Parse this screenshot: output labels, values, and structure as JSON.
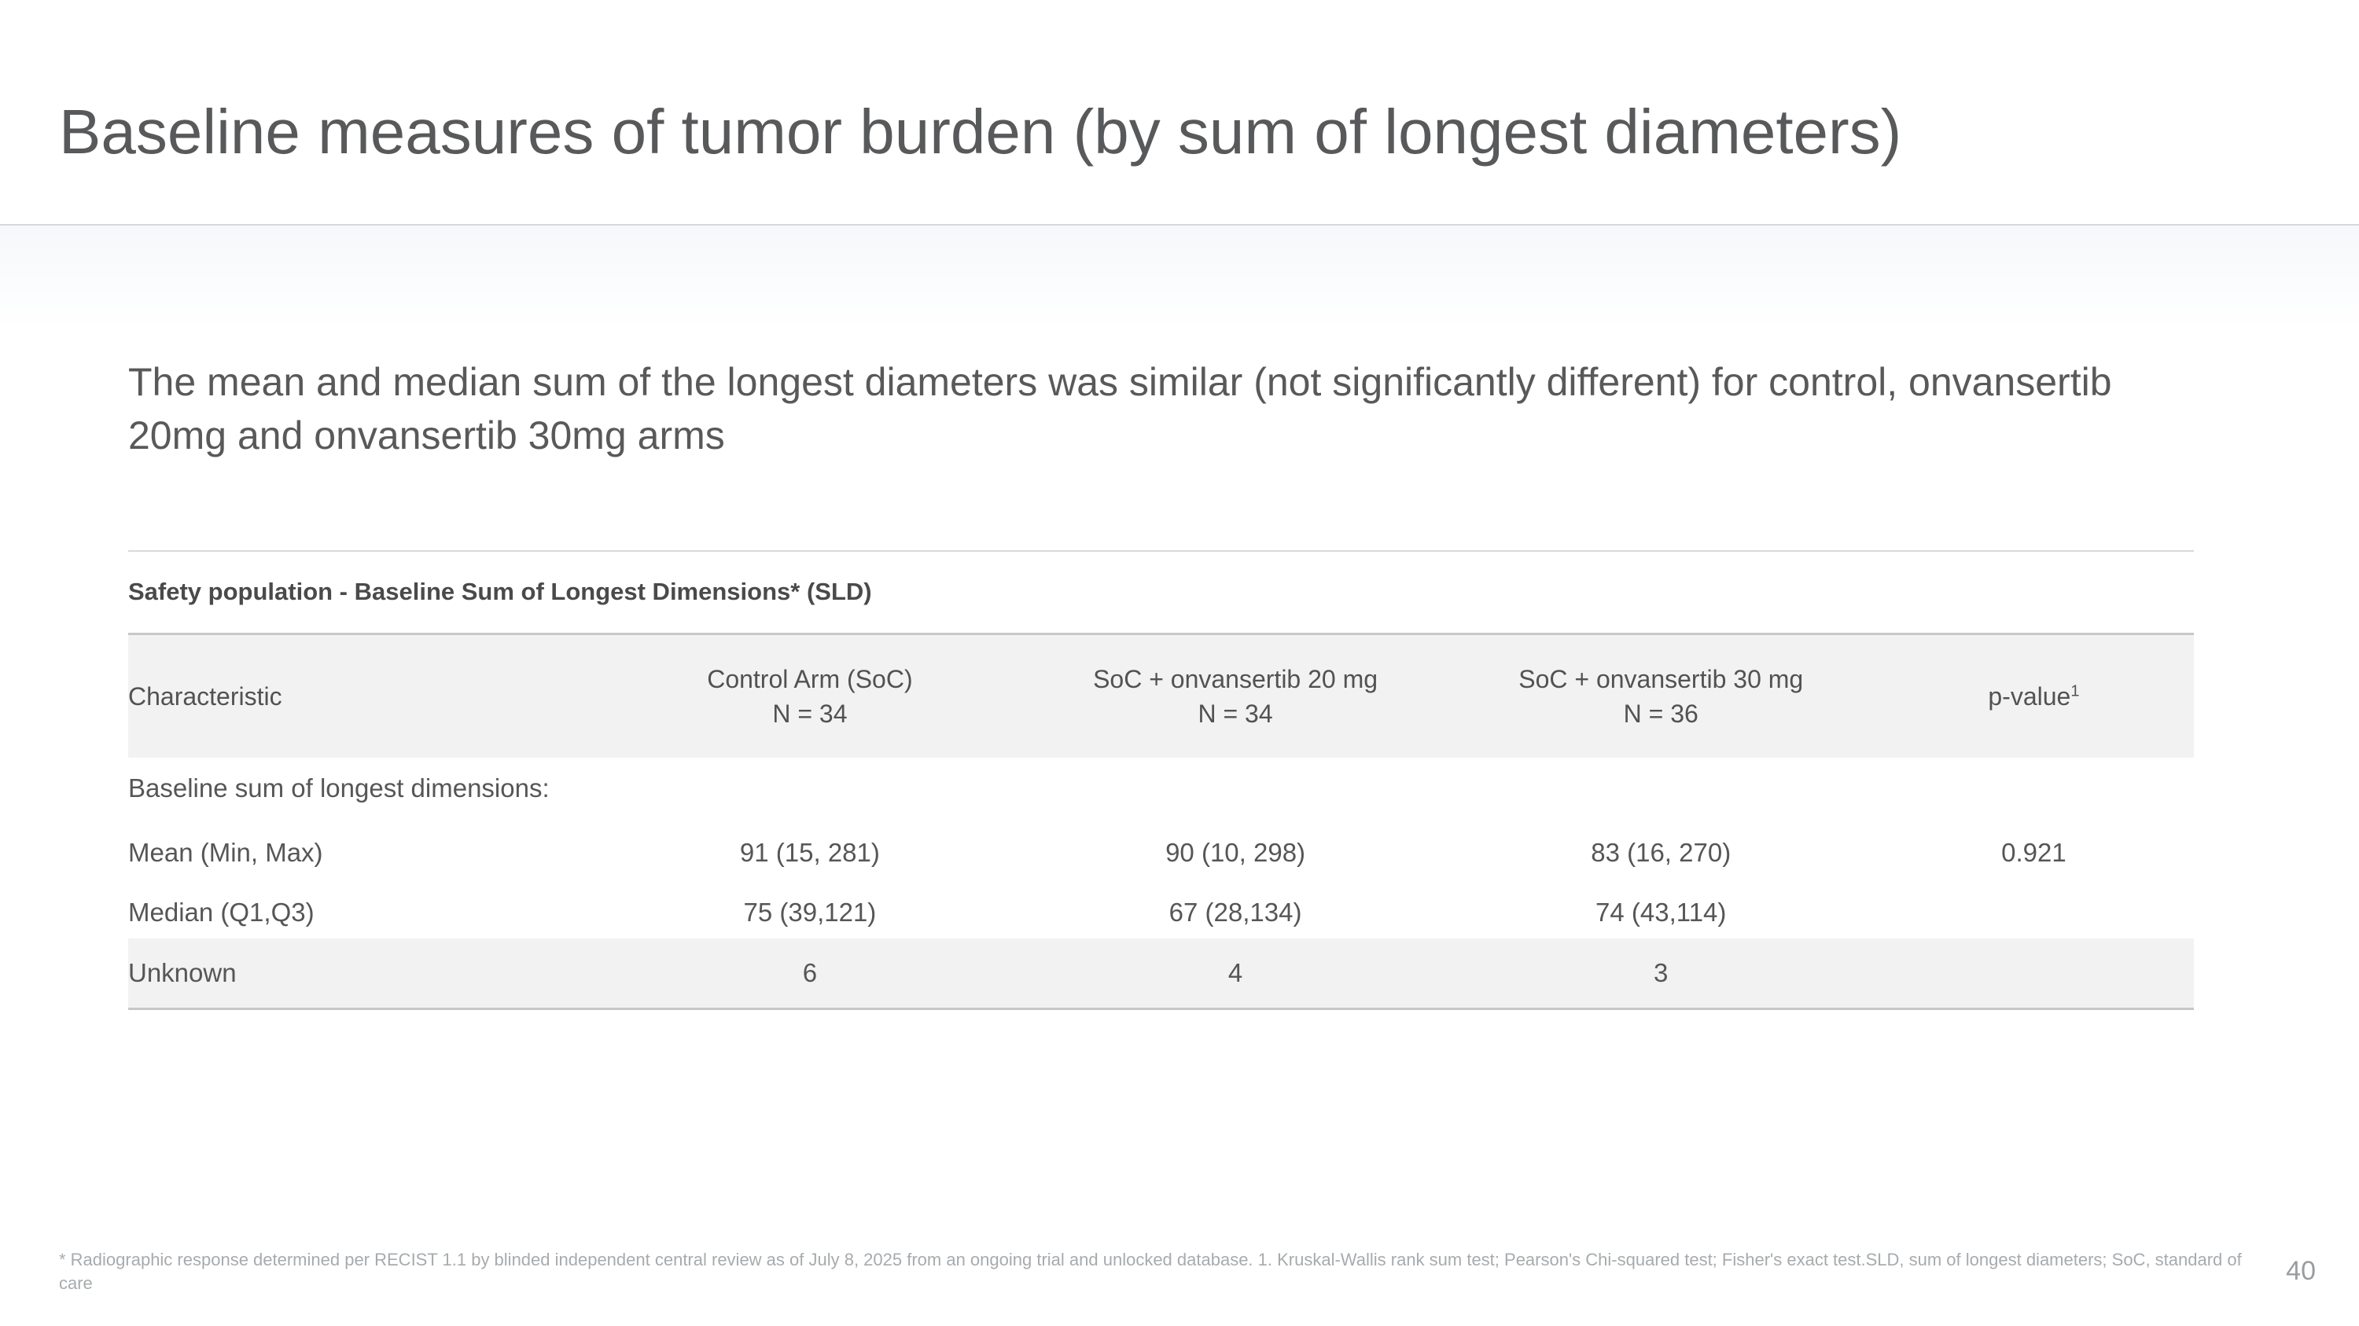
{
  "slide": {
    "title": "Baseline measures of tumor burden (by sum of longest diameters)",
    "subtitle": "The mean and median sum of the longest diameters was similar (not significantly different) for control, onvansertib 20mg and onvansertib 30mg arms",
    "footnote": "* Radiographic response determined per RECIST 1.1 by blinded independent central review as of July 8, 2025 from an ongoing trial and unlocked database. 1. Kruskal-Wallis rank sum test; Pearson's Chi-squared test; Fisher's exact test.SLD, sum of longest diameters; SoC, standard of care",
    "page_number": "40"
  },
  "table": {
    "caption": "Safety population - Baseline Sum of Longest Dimensions* (SLD)",
    "columns": [
      {
        "label": "Characteristic",
        "sublabel": ""
      },
      {
        "label": "Control Arm (SoC)",
        "sublabel": "N = 34"
      },
      {
        "label": "SoC + onvansertib 20 mg",
        "sublabel": "N = 34"
      },
      {
        "label": "SoC + onvansertib 30 mg",
        "sublabel": "N = 36"
      },
      {
        "label": "p-value",
        "superscript": "1"
      }
    ],
    "group_label": "Baseline sum of longest dimensions:",
    "rows": [
      {
        "cells": [
          "Mean (Min, Max)",
          "91 (15, 281)",
          "90 (10, 298)",
          "83 (16, 270)",
          "0.921"
        ]
      },
      {
        "cells": [
          "Median (Q1,Q3)",
          "75 (39,121)",
          "67 (28,134)",
          "74 (43,114)",
          ""
        ]
      },
      {
        "cells": [
          "Unknown",
          "6",
          "4",
          "3",
          ""
        ]
      }
    ]
  },
  "colors": {
    "title_text": "#58595b",
    "body_text": "#595959",
    "table_header_bg": "#f2f2f3",
    "shaded_row_bg": "#f2f2f3",
    "table_border": "#c7c7c7",
    "divider_line": "#d4d8dc",
    "gradient_band_top": "#f6f8f9",
    "footnote_text": "#a7abae",
    "page_number_text": "#9a9da0"
  }
}
